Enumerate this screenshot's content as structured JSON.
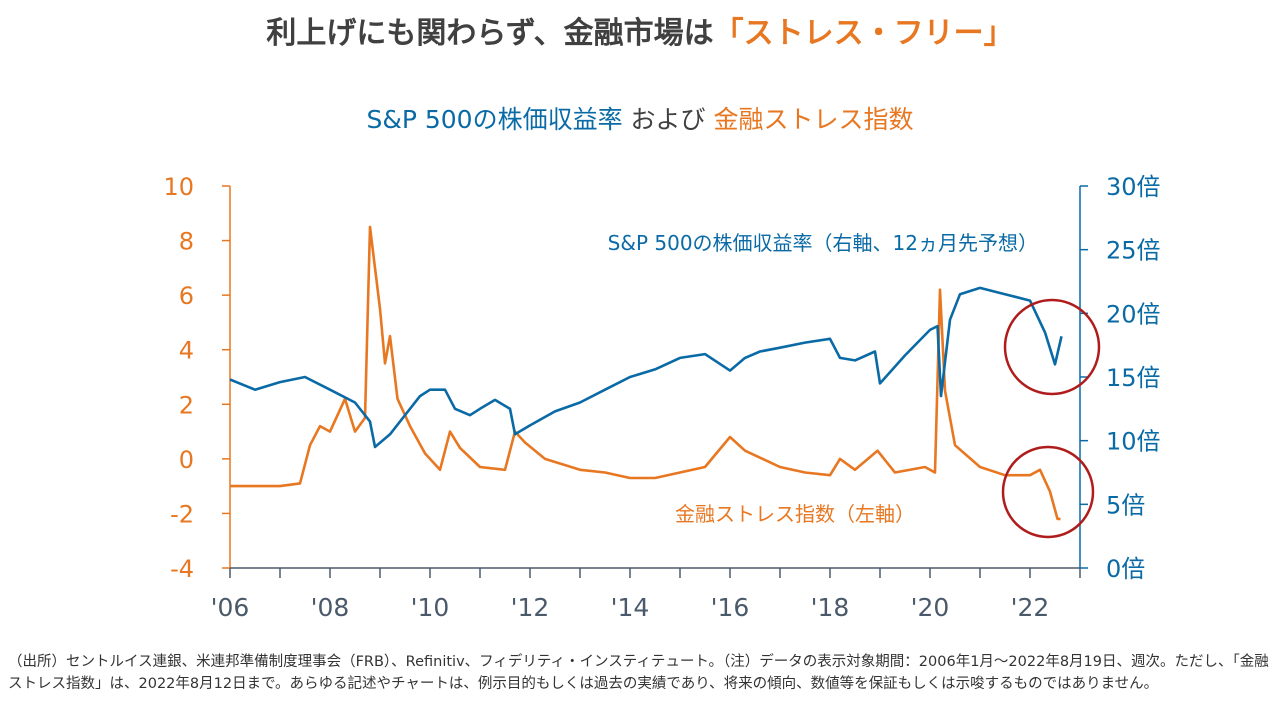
{
  "title": {
    "main": "利上げにも関わらず、金融市場は",
    "highlight": "「ストレス・フリー」"
  },
  "subtitle": {
    "part1": "S&P 500の株価収益率",
    "part2": " および ",
    "part3": "金融ストレス指数"
  },
  "colors": {
    "fsi": "#e87722",
    "pe": "#0a6aa6",
    "circle": "#b01c1c",
    "axis": "#4a5a6a"
  },
  "chart_data": {
    "type": "line",
    "x_ticks": [
      "'06",
      "'08",
      "'10",
      "'12",
      "'14",
      "'16",
      "'18",
      "'20",
      "'22"
    ],
    "x_tick_years": [
      2006,
      2008,
      2010,
      2012,
      2014,
      2016,
      2018,
      2020,
      2022
    ],
    "xlim": [
      2006,
      2023
    ],
    "left_axis": {
      "ylim": [
        -4,
        10
      ],
      "ticks": [
        "10",
        "8",
        "6",
        "4",
        "2",
        "0",
        "-2",
        "-4"
      ],
      "tick_values": [
        10,
        8,
        6,
        4,
        2,
        0,
        -2,
        -4
      ]
    },
    "right_axis": {
      "ylim": [
        0,
        30
      ],
      "ticks": [
        "30倍",
        "25倍",
        "20倍",
        "15倍",
        "10倍",
        "5倍",
        "0倍"
      ],
      "tick_values": [
        30,
        25,
        20,
        15,
        10,
        5,
        0
      ]
    },
    "series": [
      {
        "name": "S&P 500の株価収益率（右軸、12ヵ月先予想）",
        "axis": "right",
        "x": [
          2006.0,
          2006.5,
          2007.0,
          2007.5,
          2008.0,
          2008.5,
          2008.8,
          2008.9,
          2009.2,
          2009.5,
          2009.8,
          2010.0,
          2010.3,
          2010.5,
          2010.8,
          2011.0,
          2011.3,
          2011.6,
          2011.7,
          2012.0,
          2012.5,
          2013.0,
          2013.5,
          2014.0,
          2014.5,
          2015.0,
          2015.5,
          2016.0,
          2016.3,
          2016.6,
          2017.0,
          2017.5,
          2018.0,
          2018.2,
          2018.5,
          2018.9,
          2019.0,
          2019.5,
          2020.0,
          2020.15,
          2020.22,
          2020.4,
          2020.6,
          2021.0,
          2021.5,
          2022.0,
          2022.3,
          2022.5,
          2022.63
        ],
        "y": [
          14.8,
          14.0,
          14.6,
          15.0,
          14.0,
          13.0,
          11.5,
          9.5,
          10.5,
          12.0,
          13.5,
          14.0,
          14.0,
          12.5,
          12.0,
          12.5,
          13.2,
          12.5,
          10.5,
          11.2,
          12.3,
          13.0,
          14.0,
          15.0,
          15.6,
          16.5,
          16.8,
          15.5,
          16.5,
          17.0,
          17.3,
          17.7,
          18.0,
          16.5,
          16.3,
          17.0,
          14.5,
          16.7,
          18.7,
          19.0,
          13.5,
          19.5,
          21.5,
          22.0,
          21.5,
          21.0,
          18.5,
          16.0,
          18.2
        ]
      },
      {
        "name": "金融ストレス指数（左軸）",
        "axis": "left",
        "x": [
          2006.0,
          2007.0,
          2007.4,
          2007.6,
          2007.8,
          2008.0,
          2008.3,
          2008.5,
          2008.7,
          2008.75,
          2008.8,
          2008.9,
          2009.0,
          2009.1,
          2009.2,
          2009.35,
          2009.6,
          2009.9,
          2010.2,
          2010.4,
          2010.6,
          2011.0,
          2011.5,
          2011.7,
          2011.9,
          2012.3,
          2013.0,
          2013.5,
          2014.0,
          2014.5,
          2015.0,
          2015.5,
          2016.0,
          2016.3,
          2017.0,
          2017.5,
          2018.0,
          2018.2,
          2018.5,
          2018.95,
          2019.3,
          2019.9,
          2020.1,
          2020.2,
          2020.3,
          2020.5,
          2021.0,
          2021.5,
          2022.0,
          2022.2,
          2022.4,
          2022.55,
          2022.61
        ],
        "y": [
          -1.0,
          -1.0,
          -0.9,
          0.5,
          1.2,
          1.0,
          2.2,
          1.0,
          1.5,
          5.0,
          8.5,
          7.0,
          5.5,
          3.5,
          4.5,
          2.2,
          1.2,
          0.2,
          -0.4,
          1.0,
          0.4,
          -0.3,
          -0.4,
          1.0,
          0.6,
          0.0,
          -0.4,
          -0.5,
          -0.7,
          -0.7,
          -0.5,
          -0.3,
          0.8,
          0.3,
          -0.3,
          -0.5,
          -0.6,
          0.0,
          -0.4,
          0.3,
          -0.5,
          -0.3,
          -0.5,
          6.2,
          2.5,
          0.5,
          -0.3,
          -0.6,
          -0.6,
          -0.4,
          -1.2,
          -2.2,
          -2.2
        ]
      }
    ],
    "annotations": [
      "S&P 500の株価収益率（右軸、12ヵ月先予想）",
      "金融ストレス指数（左軸）"
    ]
  },
  "footnote": "（出所）セントルイス連銀、米連邦準備制度理事会（FRB）、Refinitiv、フィデリティ・インスティテュート。（注）データの表示対象期間：2006年1月～2022年8月19日、週次。ただし、「金融ストレス指数」は、2022年8月12日まで。あらゆる記述やチャートは、例示目的もしくは過去の実績であり、将来の傾向、数値等を保証もしくは示唆するものではありません。"
}
